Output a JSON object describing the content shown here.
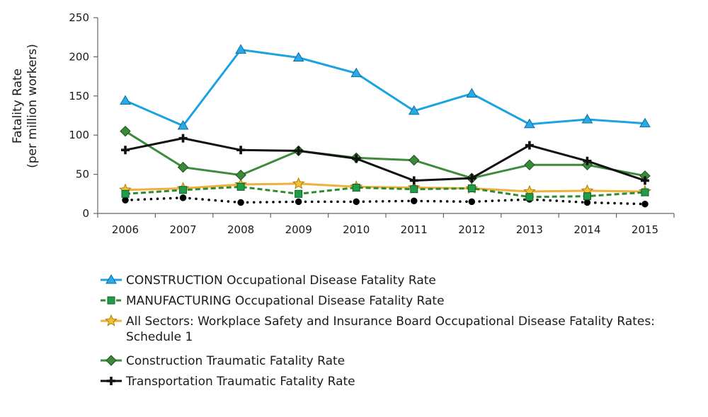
{
  "chart_data": {
    "type": "line",
    "title": "",
    "xlabel": "",
    "ylabel": "Fatality Rate",
    "ylabel_sub": "(per million workers)",
    "categories": [
      "2006",
      "2007",
      "2008",
      "2009",
      "2010",
      "2011",
      "2012",
      "2013",
      "2014",
      "2015"
    ],
    "ylim": [
      0,
      250
    ],
    "yticks": [
      0,
      50,
      100,
      150,
      200,
      250
    ],
    "grid": false,
    "legend_position": "bottom",
    "series": [
      {
        "name": "CONSTRUCTION Occupational Disease Fatality Rate",
        "values": [
          144,
          112,
          209,
          199,
          179,
          131,
          153,
          114,
          120,
          115
        ],
        "color": "#1aa3e0",
        "marker": "triangle",
        "marker_fill": "#2aa9e6",
        "dash": "solid",
        "show_in_legend": true
      },
      {
        "name": "MANUFACTURING Occupational Disease Fatality Rate",
        "values": [
          25,
          30,
          34,
          25,
          33,
          31,
          32,
          21,
          22,
          27
        ],
        "color": "#2e8b2e",
        "marker": "square",
        "marker_fill": "#1f9e4a",
        "dash": "dashed",
        "show_in_legend": true
      },
      {
        "name": "All Sectors: Workplace Safety and Insurance Board Occupational Disease Fatality Rates:",
        "name_line2": "Schedule 1",
        "values": [
          30,
          32,
          37,
          38,
          34,
          33,
          32,
          28,
          29,
          28
        ],
        "color": "#f0b03c",
        "marker": "star",
        "marker_fill": "#f2c230",
        "dash": "solid",
        "show_in_legend": true
      },
      {
        "name": "Construction Traumatic Fatality Rate",
        "values": [
          105,
          59,
          49,
          80,
          71,
          68,
          45,
          62,
          62,
          48
        ],
        "color": "#3e8a3e",
        "marker": "diamond",
        "marker_fill": "#3a8a3a",
        "dash": "solid",
        "show_in_legend": true
      },
      {
        "name": "Transportation Traumatic Fatality Rate",
        "values": [
          81,
          96,
          81,
          80,
          70,
          42,
          45,
          87,
          67,
          42
        ],
        "color": "#111111",
        "marker": "cross",
        "marker_fill": "#111111",
        "dash": "solid",
        "show_in_legend": true
      },
      {
        "name": "",
        "values": [
          17,
          20,
          14,
          15,
          15,
          16,
          15,
          18,
          14,
          12
        ],
        "color": "#000000",
        "marker": "circle",
        "marker_fill": "#000000",
        "dash": "dotted",
        "show_in_legend": false
      }
    ]
  }
}
